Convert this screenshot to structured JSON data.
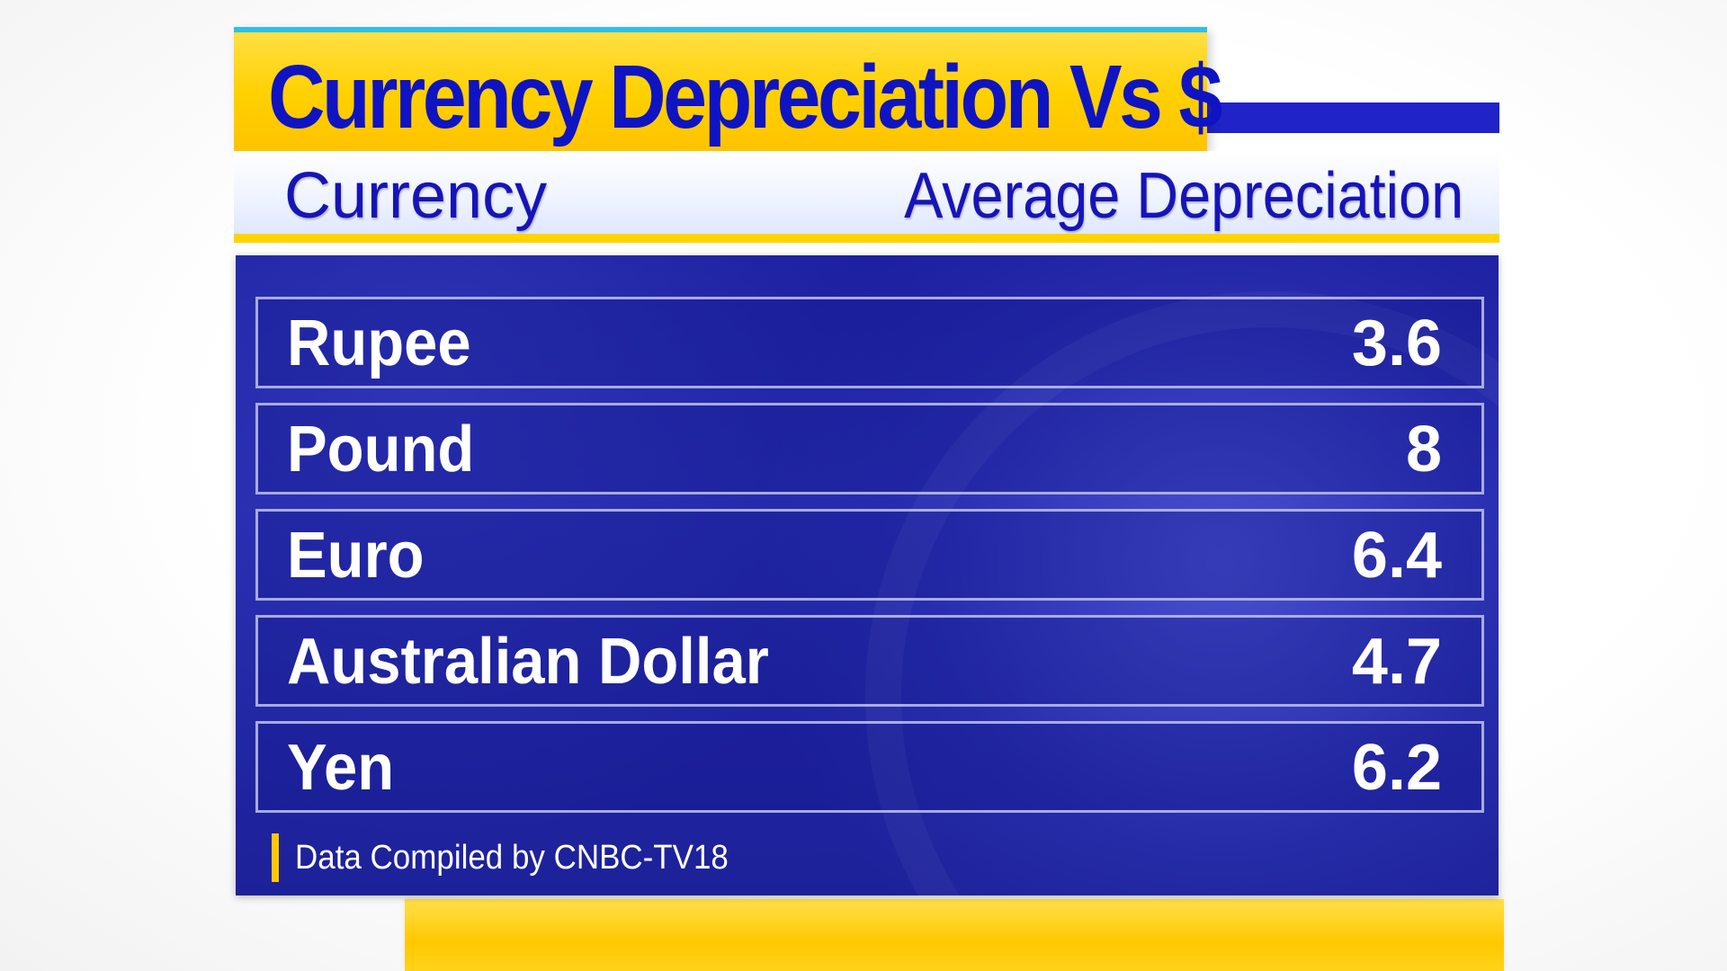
{
  "title": "Currency Depreciation Vs $",
  "header": {
    "left": "Currency",
    "right": "Average Depreciation"
  },
  "rows": [
    {
      "currency": "Rupee",
      "value": "3.6"
    },
    {
      "currency": "Pound",
      "value": "8"
    },
    {
      "currency": "Euro",
      "value": "6.4"
    },
    {
      "currency": "Australian Dollar",
      "value": "4.7"
    },
    {
      "currency": "Yen",
      "value": "6.2"
    }
  ],
  "source": "Data Compiled by CNBC-TV18",
  "colors": {
    "title_banner": "#ffd000",
    "title_text": "#0f14c2",
    "panel": "#1f23a6",
    "accent_bar": "#1f23c8",
    "source_bar": "#ffc800"
  },
  "chart_data": {
    "type": "table",
    "title": "Currency Depreciation Vs $",
    "columns": [
      "Currency",
      "Average Depreciation"
    ],
    "rows": [
      [
        "Rupee",
        3.6
      ],
      [
        "Pound",
        8
      ],
      [
        "Euro",
        6.4
      ],
      [
        "Australian Dollar",
        4.7
      ],
      [
        "Yen",
        6.2
      ]
    ]
  }
}
